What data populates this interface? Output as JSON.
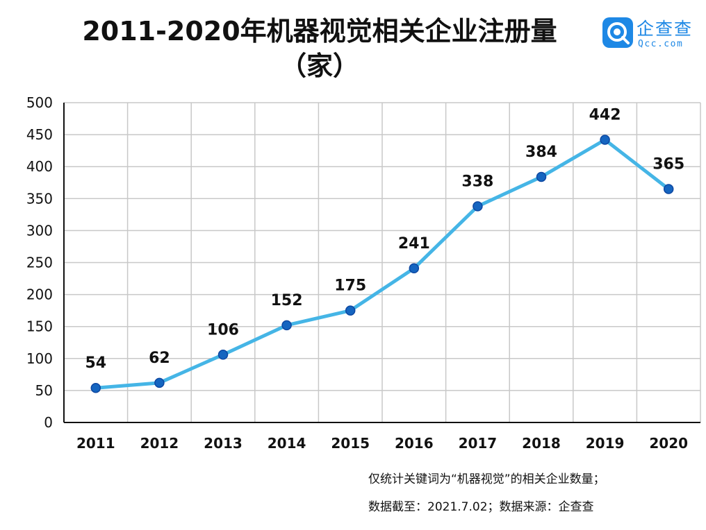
{
  "title_line1": "2011-2020年机器视觉相关企业注册量",
  "title_line2": "（家）",
  "logo": {
    "name_cn": "企查查",
    "name_en": "Qcc.com",
    "color": "#1e88e5"
  },
  "colors": {
    "line": "#45b5e6",
    "marker": "#1565c0",
    "grid": "#c8c8c8",
    "axis": "#111111"
  },
  "chart_data": {
    "type": "line",
    "title": "2011-2020年机器视觉相关企业注册量（家）",
    "categories": [
      "2011",
      "2012",
      "2013",
      "2014",
      "2015",
      "2016",
      "2017",
      "2018",
      "2019",
      "2020"
    ],
    "series": [
      {
        "values": [
          54,
          62,
          106,
          152,
          175,
          241,
          338,
          384,
          442,
          365
        ]
      }
    ],
    "data_labels": [
      "54",
      "62",
      "106",
      "152",
      "175",
      "241",
      "338",
      "384",
      "442",
      "365"
    ],
    "y_ticks": [
      "0",
      "50",
      "100",
      "150",
      "200",
      "250",
      "300",
      "350",
      "400",
      "450",
      "500"
    ],
    "ylim": [
      0,
      500
    ],
    "grid": true,
    "xlabel": "",
    "ylabel": ""
  },
  "footnotes": {
    "line1": "仅统计关键词为“机器视觉”的相关企业数量；",
    "line2": "数据截至：2021.7.02；数据来源：企查查"
  }
}
